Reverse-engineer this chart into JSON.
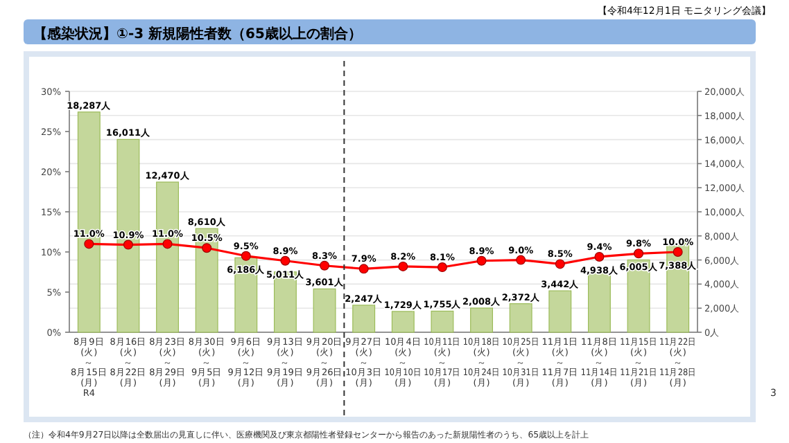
{
  "chart_data": {
    "type": "bar",
    "title": "【感染状況】①-3 新規陽性者数（65歳以上の割合）",
    "subtitle": "【令和4年12月1日 モニタリング会議】",
    "annotations": [
      "（注）令和4年9月27日以降は全数届出の見直しに伴い、医療機関及び東京都陽性者登録センターから報告のあった新規陽性者のうち、65歳以上を計上",
      "3"
    ],
    "categories": [
      "8月9日\n(火)\n～\n8月15日\n(月)\nR4",
      "8月16日\n(火)\n～\n8月22日\n(月)",
      "8月23日\n(火)\n～\n8月29日\n(月)",
      "8月30日\n(火)\n～\n9月5日\n(月)",
      "9月6日\n(火)\n～\n9月12日\n(月)",
      "9月13日\n(火)\n～\n9月19日\n(月)",
      "9月20日\n(火)\n～\n9月26日\n(月)",
      "9月27日\n(火)\n～\n10月3日\n(月)",
      "10月4日\n(火)\n～\n10月10日\n(月)",
      "10月11日\n(火)\n～\n10月17日\n(月)",
      "10月18日\n(火)\n～\n10月24日\n(月)",
      "10月25日\n(火)\n～\n10月31日\n(月)",
      "11月1日\n(火)\n～\n11月7日\n(月)",
      "11月8日\n(火)\n～\n11月14日\n(月)",
      "11月15日\n(火)\n～\n11月21日\n(月)",
      "11月22日\n(火)\n～\n11月28日\n(月)"
    ],
    "series": [
      {
        "axis": "y2",
        "color": "#c4d79b",
        "values": [
          18287,
          16011,
          12470,
          8610,
          6186,
          5011,
          3601,
          2247,
          1729,
          1755,
          2008,
          2372,
          3442,
          4938,
          6005,
          7388
        ],
        "value_labels": [
          "18,287人",
          "16,011人",
          "12,470人",
          "8,610人",
          "6,186人",
          "5,011人",
          "3,601人",
          "2,247人",
          "1,729人",
          "1,755人",
          "2,008人",
          "2,372人",
          "3,442人",
          "4,938人",
          "6,005人",
          "7,388人"
        ]
      },
      {
        "type": "line",
        "axis": "y",
        "color": "#ff0000",
        "marker": "circle",
        "values": [
          11.0,
          10.9,
          11.0,
          10.5,
          9.5,
          8.9,
          8.3,
          7.9,
          8.2,
          8.1,
          8.9,
          9.0,
          8.5,
          9.4,
          9.8,
          10.0
        ],
        "value_labels": [
          "11.0%",
          "10.9%",
          "11.0%",
          "10.5%",
          "9.5%",
          "8.9%",
          "8.3%",
          "7.9%",
          "8.2%",
          "8.1%",
          "8.9%",
          "9.0%",
          "8.5%",
          "9.4%",
          "9.8%",
          "10.0%"
        ]
      }
    ],
    "ylim": [
      0,
      30
    ],
    "yticks": [
      {
        "value": 0,
        "label": "0%"
      },
      {
        "value": 5,
        "label": "5%"
      },
      {
        "value": 10,
        "label": "10%"
      },
      {
        "value": 15,
        "label": "15%"
      },
      {
        "value": 20,
        "label": "20%"
      },
      {
        "value": 25,
        "label": "25%"
      },
      {
        "value": 30,
        "label": "30%"
      }
    ],
    "y2lim": [
      0,
      20000
    ],
    "y2ticks": [
      {
        "value": 0,
        "label": "0人"
      },
      {
        "value": 2000,
        "label": "2,000人"
      },
      {
        "value": 4000,
        "label": "4,000人"
      },
      {
        "value": 6000,
        "label": "6,000人"
      },
      {
        "value": 8000,
        "label": "8,000人"
      },
      {
        "value": 10000,
        "label": "10,000人"
      },
      {
        "value": 12000,
        "label": "12,000人"
      },
      {
        "value": 14000,
        "label": "14,000人"
      },
      {
        "value": 16000,
        "label": "16,000人"
      },
      {
        "value": 18000,
        "label": "18,000人"
      },
      {
        "value": 20000,
        "label": "20,000人"
      }
    ],
    "ref_lines": [
      {
        "axis": "x",
        "value": "9月27日\n(火)\n～\n10月3日\n(月)",
        "line_style": "dashed",
        "color": "#333333"
      }
    ],
    "grid": "y"
  }
}
